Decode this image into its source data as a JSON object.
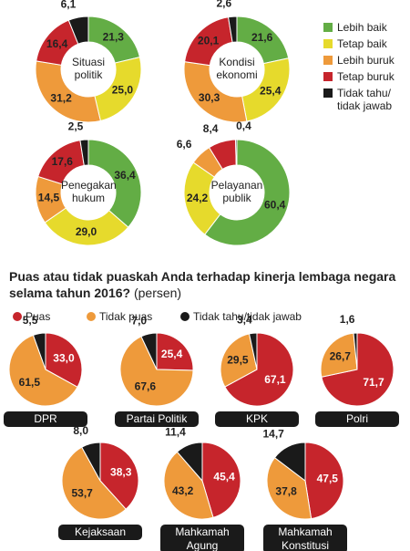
{
  "donut_legend": {
    "names": [
      "Lebih baik",
      "Tetap baik",
      "Lebih buruk",
      "Tetap buruk",
      "Tidak tahu/ tidak jawab"
    ],
    "colors": [
      "#63ad45",
      "#e6da2c",
      "#ee9a3b",
      "#c6252c",
      "#1a1a1a"
    ]
  },
  "pie_title": "Puas atau tidak puaskah Anda terhadap kinerja lembaga negara selama tahun 2016?",
  "pie_unit": "(persen)",
  "pie_legend": {
    "names": [
      "Puas",
      "Tidak puas",
      "Tidak tahu/tidak jawab"
    ],
    "colors": [
      "#c6252c",
      "#ee9a3b",
      "#1a1a1a"
    ]
  },
  "chart_data": [
    {
      "type": "donut",
      "title": "Situasi politik",
      "values": [
        21.3,
        25.0,
        31.2,
        16.4,
        6.1
      ],
      "value_labels": [
        "21,3",
        "25,0",
        "31,2",
        "16,4",
        "6,1"
      ]
    },
    {
      "type": "donut",
      "title": "Kondisi ekonomi",
      "values": [
        21.6,
        25.4,
        30.3,
        20.1,
        2.6
      ],
      "value_labels": [
        "21,6",
        "25,4",
        "30,3",
        "20,1",
        "2,6"
      ]
    },
    {
      "type": "donut",
      "title": "Penegakan hukum",
      "values": [
        36.4,
        29.0,
        14.5,
        17.6,
        2.5
      ],
      "value_labels": [
        "36,4",
        "29,0",
        "14,5",
        "17,6",
        "2,5"
      ]
    },
    {
      "type": "donut",
      "title": "Pelayanan publik",
      "values": [
        60.4,
        24.2,
        6.6,
        8.4,
        0.4
      ],
      "value_labels": [
        "60,4",
        "24,2",
        "6,6",
        "8,4",
        "0,4"
      ]
    },
    {
      "type": "pie",
      "title": "DPR",
      "values": [
        33.0,
        61.5,
        5.5
      ],
      "value_labels": [
        "33,0",
        "61,5",
        "5,5"
      ]
    },
    {
      "type": "pie",
      "title": "Partai Politik",
      "values": [
        25.4,
        67.6,
        7.0
      ],
      "value_labels": [
        "25,4",
        "67,6",
        "7,0"
      ]
    },
    {
      "type": "pie",
      "title": "KPK",
      "values": [
        67.1,
        29.5,
        3.4
      ],
      "value_labels": [
        "67,1",
        "29,5",
        "3,4"
      ]
    },
    {
      "type": "pie",
      "title": "Polri",
      "values": [
        71.7,
        26.7,
        1.6
      ],
      "value_labels": [
        "71,7",
        "26,7",
        "1,6"
      ]
    },
    {
      "type": "pie",
      "title": "Kejaksaan",
      "values": [
        38.3,
        53.7,
        8.0
      ],
      "value_labels": [
        "38,3",
        "53,7",
        "8,0"
      ]
    },
    {
      "type": "pie",
      "title": "Mahkamah Agung",
      "values": [
        45.4,
        43.2,
        11.4
      ],
      "value_labels": [
        "45,4",
        "43,2",
        "11,4"
      ]
    },
    {
      "type": "pie",
      "title": "Mahkamah Konstitusi",
      "values": [
        47.5,
        37.8,
        14.7
      ],
      "value_labels": [
        "47,5",
        "37,8",
        "14,7"
      ]
    }
  ]
}
